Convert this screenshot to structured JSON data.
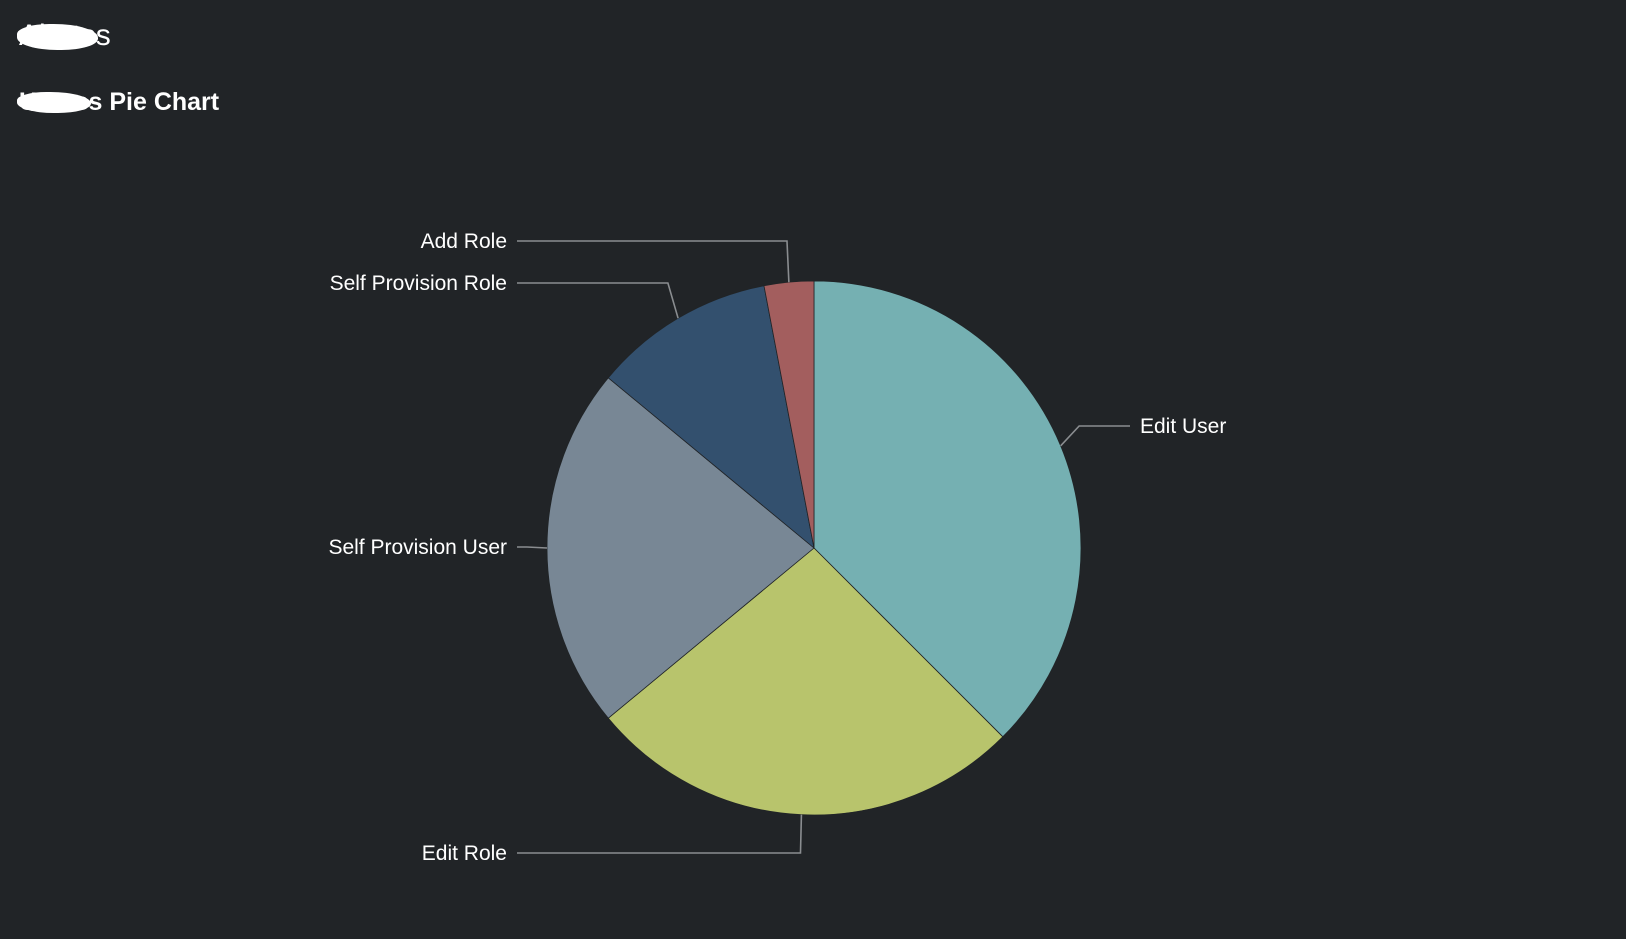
{
  "header": {
    "breadcrumb_hidden": "Alerts",
    "breadcrumb_tail": "s",
    "title_hidden": "Users",
    "title_tail": "s Pie Chart"
  },
  "chart_data": {
    "type": "pie",
    "title": "",
    "start_angle_deg": 0,
    "direction": "clockwise",
    "slices": [
      {
        "label": "Edit User",
        "value": 37.5,
        "color": "#75b0b2"
      },
      {
        "label": "Edit Role",
        "value": 26.5,
        "color": "#b8c46c"
      },
      {
        "label": "Self Provision User",
        "value": 22.0,
        "color": "#788795"
      },
      {
        "label": "Self Provision Role",
        "value": 11.0,
        "color": "#33506e"
      },
      {
        "label": "Add Role",
        "value": 3.0,
        "color": "#a35e5e"
      }
    ],
    "legend": "none",
    "grid": false
  }
}
